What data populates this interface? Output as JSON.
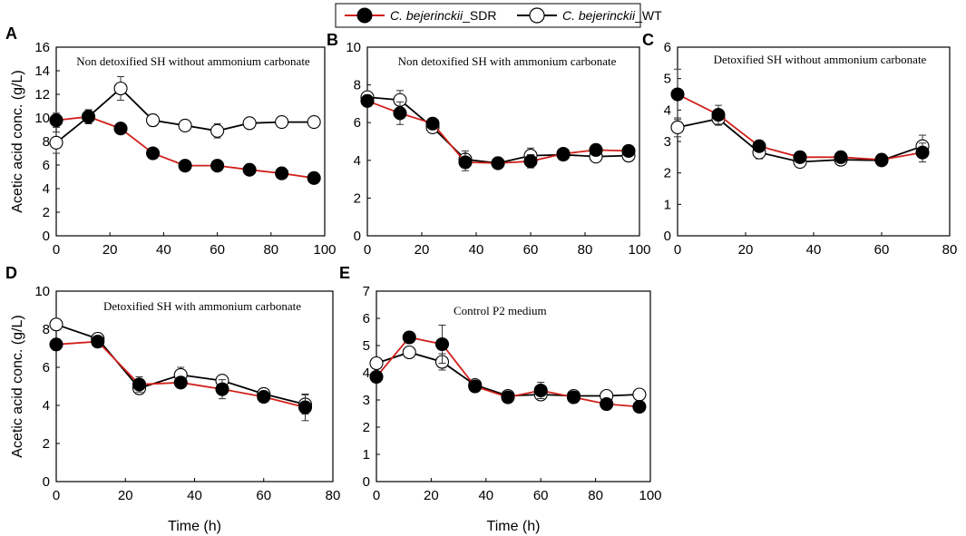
{
  "colors": {
    "sdr_line": "#d0201a",
    "wt_line": "#000000",
    "sdr_marker": "#000000",
    "wt_marker": "#ffffff",
    "frame": "#000000"
  },
  "legend": {
    "sdr": {
      "species": "C. bejerinckii",
      "strain": "_SDR"
    },
    "wt": {
      "species": "C. bejerinckii",
      "strain": "_WT"
    }
  },
  "chart_data": [
    {
      "panel": "A",
      "type": "line",
      "title": "Non detoxified SH without ammonium carbonate",
      "xlabel": "",
      "ylabel": "Acetic acid conc. (g/L)",
      "xlim": [
        0,
        100
      ],
      "ylim": [
        0,
        16
      ],
      "xticks": [
        0,
        20,
        40,
        60,
        80,
        100
      ],
      "yticks": [
        0,
        2,
        4,
        6,
        8,
        10,
        12,
        14,
        16
      ],
      "series": [
        {
          "name": "C. bejerinckii_SDR",
          "x": [
            0,
            12,
            24,
            36,
            48,
            60,
            72,
            84,
            96
          ],
          "y": [
            9.8,
            10.1,
            9.1,
            7.0,
            5.95,
            5.95,
            5.6,
            5.3,
            4.9
          ],
          "err": [
            0.6,
            0.5,
            0.3,
            0.3,
            0.3,
            0.2,
            0.2,
            0.2,
            0.2
          ]
        },
        {
          "name": "C. bejerinckii_WT",
          "x": [
            0,
            12,
            24,
            36,
            48,
            60,
            72,
            84,
            96
          ],
          "y": [
            7.9,
            10.1,
            12.5,
            9.8,
            9.35,
            8.9,
            9.55,
            9.65,
            9.65
          ],
          "err": [
            0.9,
            0.6,
            1.0,
            0.5,
            0.3,
            0.6,
            0.3,
            0.3,
            0.3
          ]
        }
      ]
    },
    {
      "panel": "B",
      "type": "line",
      "title": "Non detoxified SH with ammonium carbonate",
      "xlabel": "",
      "ylabel": "",
      "xlim": [
        0,
        100
      ],
      "ylim": [
        0,
        10
      ],
      "xticks": [
        0,
        20,
        40,
        60,
        80,
        100
      ],
      "yticks": [
        0,
        2,
        4,
        6,
        8,
        10
      ],
      "series": [
        {
          "name": "C. bejerinckii_SDR",
          "x": [
            0,
            12,
            24,
            36,
            48,
            60,
            72,
            84,
            96
          ],
          "y": [
            7.15,
            6.5,
            5.95,
            3.9,
            3.85,
            3.95,
            4.35,
            4.55,
            4.5
          ],
          "err": [
            0.3,
            0.6,
            0.2,
            0.45,
            0.1,
            0.35,
            0.15,
            0.15,
            0.15
          ]
        },
        {
          "name": "C. bejerinckii_WT",
          "x": [
            0,
            12,
            24,
            36,
            48,
            60,
            72,
            84,
            96
          ],
          "y": [
            7.35,
            7.2,
            5.75,
            4.05,
            3.85,
            4.25,
            4.3,
            4.2,
            4.25
          ],
          "err": [
            0.25,
            0.5,
            0.2,
            0.45,
            0.1,
            0.4,
            0.15,
            0.15,
            0.15
          ]
        }
      ]
    },
    {
      "panel": "C",
      "type": "line",
      "title": "Detoxified SH without ammonium carbonate",
      "xlabel": "",
      "ylabel": "",
      "xlim": [
        0,
        80
      ],
      "ylim": [
        0,
        6
      ],
      "xticks": [
        0,
        20,
        40,
        60,
        80
      ],
      "yticks": [
        0,
        1,
        2,
        3,
        4,
        5,
        6
      ],
      "series": [
        {
          "name": "C. bejerinckii_SDR",
          "x": [
            0,
            12,
            24,
            36,
            48,
            60,
            72
          ],
          "y": [
            4.5,
            3.85,
            2.85,
            2.5,
            2.5,
            2.42,
            2.65
          ],
          "err": [
            0.8,
            0.3,
            0.1,
            0.1,
            0.1,
            0.1,
            0.3
          ]
        },
        {
          "name": "C. bejerinckii_WT",
          "x": [
            0,
            12,
            24,
            36,
            48,
            60,
            72
          ],
          "y": [
            3.45,
            3.72,
            2.65,
            2.35,
            2.42,
            2.4,
            2.85
          ],
          "err": [
            0.3,
            0.2,
            0.2,
            0.15,
            0.1,
            0.1,
            0.35
          ]
        }
      ]
    },
    {
      "panel": "D",
      "type": "line",
      "title": "Detoxified SH with ammonium carbonate",
      "xlabel": "Time (h)",
      "ylabel": "Acetic acid conc. (g/L)",
      "xlim": [
        0,
        80
      ],
      "ylim": [
        0,
        10
      ],
      "xticks": [
        0,
        20,
        40,
        60,
        80
      ],
      "yticks": [
        0,
        2,
        4,
        6,
        8,
        10
      ],
      "series": [
        {
          "name": "C. bejerinckii_SDR",
          "x": [
            0,
            12,
            24,
            36,
            48,
            60,
            72
          ],
          "y": [
            7.2,
            7.35,
            5.1,
            5.2,
            4.85,
            4.45,
            3.9
          ],
          "err": [
            0.3,
            0.3,
            0.4,
            0.3,
            0.5,
            0.2,
            0.7
          ]
        },
        {
          "name": "C. bejerinckii_WT",
          "x": [
            0,
            12,
            24,
            36,
            48,
            60,
            72
          ],
          "y": [
            8.25,
            7.5,
            4.9,
            5.6,
            5.3,
            4.6,
            4.05
          ],
          "err": [
            0.3,
            0.3,
            0.3,
            0.4,
            0.2,
            0.2,
            0.5
          ]
        }
      ]
    },
    {
      "panel": "E",
      "type": "line",
      "title": "Control P2 medium",
      "xlabel": "Time (h)",
      "ylabel": "",
      "xlim": [
        0,
        100
      ],
      "ylim": [
        0,
        7
      ],
      "xticks": [
        0,
        20,
        40,
        60,
        80,
        100
      ],
      "yticks": [
        0,
        1,
        2,
        3,
        4,
        5,
        6,
        7
      ],
      "series": [
        {
          "name": "C. bejerinckii_SDR",
          "x": [
            0,
            12,
            24,
            36,
            48,
            60,
            72,
            84,
            96
          ],
          "y": [
            3.85,
            5.3,
            5.05,
            3.5,
            3.1,
            3.35,
            3.1,
            2.85,
            2.75
          ],
          "err": [
            0.2,
            0.2,
            0.7,
            0.15,
            0.1,
            0.3,
            0.1,
            0.1,
            0.1
          ]
        },
        {
          "name": "C. bejerinckii_WT",
          "x": [
            0,
            12,
            24,
            36,
            48,
            60,
            72,
            84,
            96
          ],
          "y": [
            4.35,
            4.75,
            4.4,
            3.55,
            3.15,
            3.2,
            3.15,
            3.15,
            3.2
          ],
          "err": [
            0.2,
            0.2,
            0.3,
            0.15,
            0.1,
            0.15,
            0.1,
            0.1,
            0.1
          ]
        }
      ]
    }
  ]
}
